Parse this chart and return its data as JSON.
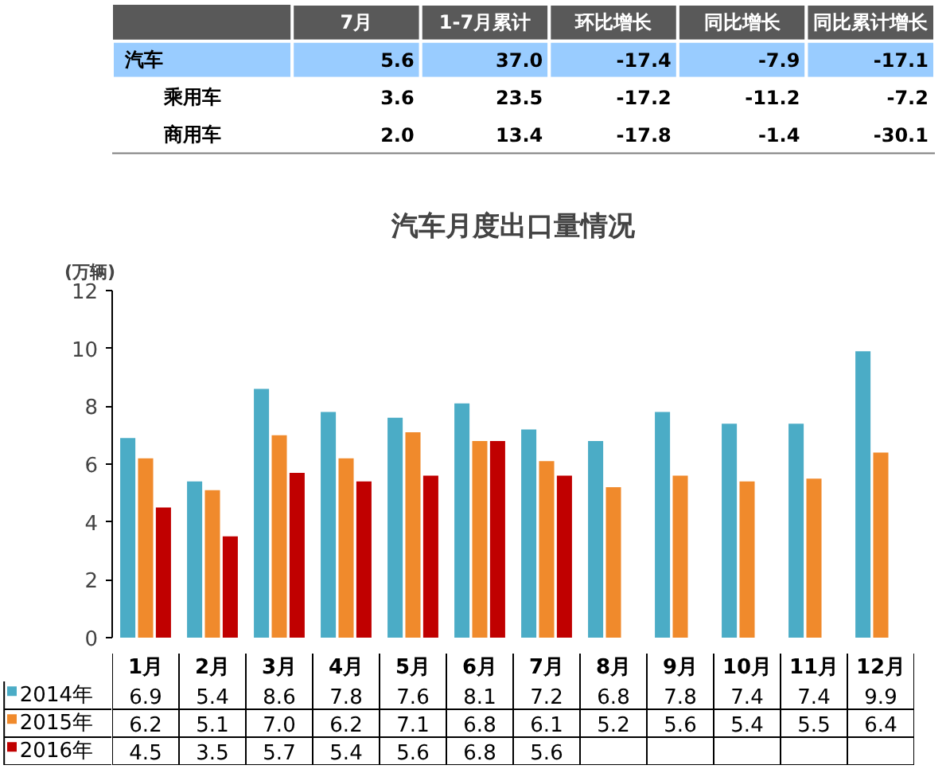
{
  "chart_data": [
    {
      "type": "other",
      "categories": [
        "7月",
        "1-7月累计",
        "环比增长",
        "同比增长",
        "同比累计增长"
      ],
      "series": [
        {
          "name": "汽车",
          "color": "#99ccff",
          "values": [
            5.6,
            37.0,
            -17.4,
            -7.9,
            -17.1
          ],
          "value_labels": [
            "5.6",
            "37.0",
            "-17.4",
            "-7.9",
            "-17.1"
          ]
        },
        {
          "name": "乘用车",
          "color": "#ffffff",
          "values": [
            3.6,
            23.5,
            -17.2,
            -11.2,
            -7.2
          ],
          "value_labels": [
            "3.6",
            "23.5",
            "-17.2",
            "-11.2",
            "-7.2"
          ]
        },
        {
          "name": "商用车",
          "color": "#ffffff",
          "values": [
            2.0,
            13.4,
            -17.8,
            -1.4,
            -30.1
          ],
          "value_labels": [
            "2.0",
            "13.4",
            "-17.8",
            "-1.4",
            "-30.1"
          ]
        }
      ]
    },
    {
      "type": "bar",
      "title": "汽车月度出口量情况",
      "ylabel": "(万辆)",
      "categories": [
        "1月",
        "2月",
        "3月",
        "4月",
        "5月",
        "6月",
        "7月",
        "8月",
        "9月",
        "10月",
        "11月",
        "12月"
      ],
      "ylim": [
        0,
        12
      ],
      "yticks": [
        0,
        2,
        4,
        6,
        8,
        10,
        12
      ],
      "grid": false,
      "legend": "bottom",
      "series": [
        {
          "name": "2014年",
          "color": "#4bacc6",
          "values": [
            6.9,
            5.4,
            8.6,
            7.8,
            7.6,
            8.1,
            7.2,
            6.8,
            7.8,
            7.4,
            7.4,
            9.9
          ],
          "value_labels": [
            "6.9",
            "5.4",
            "8.6",
            "7.8",
            "7.6",
            "8.1",
            "7.2",
            "6.8",
            "7.8",
            "7.4",
            "7.4",
            "9.9"
          ]
        },
        {
          "name": "2015年",
          "color": "#f08a2c",
          "values": [
            6.2,
            5.1,
            7.0,
            6.2,
            7.1,
            6.8,
            6.1,
            5.2,
            5.6,
            5.4,
            5.5,
            6.4
          ],
          "value_labels": [
            "6.2",
            "5.1",
            "7.0",
            "6.2",
            "7.1",
            "6.8",
            "6.1",
            "5.2",
            "5.6",
            "5.4",
            "5.5",
            "6.4"
          ]
        },
        {
          "name": "2016年",
          "color": "#c00000",
          "values": [
            4.5,
            3.5,
            5.7,
            5.4,
            5.6,
            6.8,
            5.6,
            null,
            null,
            null,
            null,
            null
          ],
          "value_labels": [
            "4.5",
            "3.5",
            "5.7",
            "5.4",
            "5.6",
            "6.8",
            "5.6",
            null,
            null,
            null,
            null,
            null
          ]
        }
      ]
    }
  ]
}
